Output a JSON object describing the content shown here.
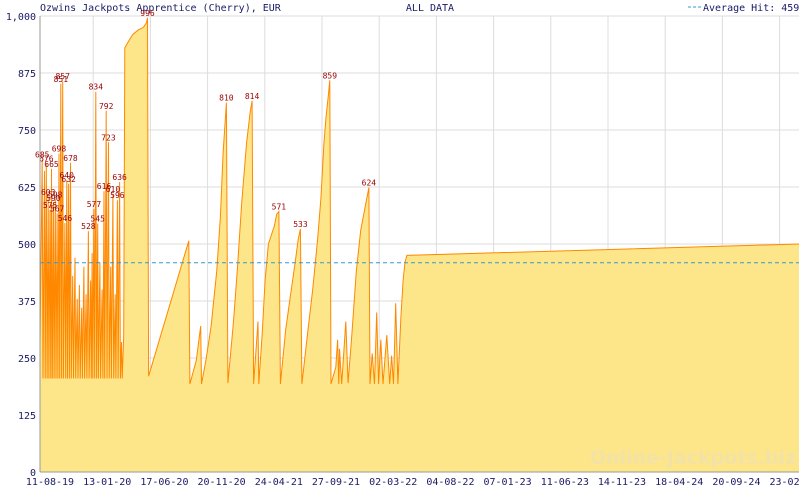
{
  "header": {
    "title": "Ozwins Jackpots Apprentice (Cherry), EUR",
    "range_label": "ALL DATA",
    "legend_label": "Average Hit: 459"
  },
  "watermark": "Online-Jackpots.biz",
  "colors": {
    "area_fill": "#fde68a",
    "line": "#ff8800",
    "average_line": "#3399cc",
    "grid": "#dddddd",
    "peak_label": "#990000",
    "text": "#1a1a66"
  },
  "chart_data": {
    "type": "area",
    "title": "Ozwins Jackpots Apprentice (Cherry), EUR",
    "subtitle": "ALL DATA",
    "currency": "EUR",
    "ylim": [
      0,
      1000
    ],
    "y_ticks": [
      0,
      125,
      250,
      375,
      500,
      625,
      750,
      875,
      1000
    ],
    "y_tick_labels": [
      "0",
      "125",
      "250",
      "375",
      "500",
      "625",
      "750",
      "875",
      "1,000"
    ],
    "x_tick_labels": [
      "11-08-19",
      "13-01-20",
      "17-06-20",
      "20-11-20",
      "24-04-21",
      "27-09-21",
      "02-03-22",
      "04-08-22",
      "07-01-23",
      "11-06-23",
      "14-11-23",
      "18-04-24",
      "20-09-24",
      "23-02-25"
    ],
    "x_index_range": [
      0,
      2040
    ],
    "average_hit": 459,
    "grid": true,
    "series": [
      {
        "points": [
          [
            0,
            280
          ],
          [
            6,
            685
          ],
          [
            8,
            205
          ],
          [
            12,
            660
          ],
          [
            14,
            205
          ],
          [
            17,
            676
          ],
          [
            19,
            205
          ],
          [
            22,
            603
          ],
          [
            24,
            205
          ],
          [
            27,
            575
          ],
          [
            29,
            205
          ],
          [
            31,
            665
          ],
          [
            33,
            205
          ],
          [
            36,
            590
          ],
          [
            38,
            205
          ],
          [
            41,
            598
          ],
          [
            43,
            205
          ],
          [
            46,
            567
          ],
          [
            48,
            205
          ],
          [
            51,
            698
          ],
          [
            53,
            205
          ],
          [
            56,
            851
          ],
          [
            58,
            205
          ],
          [
            61,
            857
          ],
          [
            63,
            205
          ],
          [
            67,
            546
          ],
          [
            69,
            205
          ],
          [
            72,
            640
          ],
          [
            74,
            205
          ],
          [
            77,
            632
          ],
          [
            79,
            205
          ],
          [
            82,
            678
          ],
          [
            84,
            205
          ],
          [
            88,
            430
          ],
          [
            90,
            205
          ],
          [
            94,
            470
          ],
          [
            96,
            205
          ],
          [
            100,
            380
          ],
          [
            102,
            205
          ],
          [
            106,
            410
          ],
          [
            108,
            205
          ],
          [
            112,
            360
          ],
          [
            114,
            205
          ],
          [
            118,
            450
          ],
          [
            120,
            205
          ],
          [
            124,
            390
          ],
          [
            126,
            205
          ],
          [
            130,
            528
          ],
          [
            132,
            205
          ],
          [
            136,
            420
          ],
          [
            138,
            205
          ],
          [
            140,
            480
          ],
          [
            142,
            205
          ],
          [
            145,
            577
          ],
          [
            147,
            205
          ],
          [
            150,
            834
          ],
          [
            152,
            205
          ],
          [
            155,
            545
          ],
          [
            157,
            205
          ],
          [
            161,
            460
          ],
          [
            163,
            205
          ],
          [
            167,
            400
          ],
          [
            169,
            205
          ],
          [
            172,
            616
          ],
          [
            174,
            205
          ],
          [
            178,
            792
          ],
          [
            180,
            205
          ],
          [
            184,
            723
          ],
          [
            186,
            205
          ],
          [
            190,
            450
          ],
          [
            192,
            205
          ],
          [
            196,
            610
          ],
          [
            198,
            205
          ],
          [
            202,
            390
          ],
          [
            204,
            205
          ],
          [
            208,
            596
          ],
          [
            210,
            205
          ],
          [
            214,
            636
          ],
          [
            216,
            205
          ],
          [
            219,
            285
          ],
          [
            221,
            205
          ],
          [
            225,
            300
          ],
          [
            228,
            930
          ],
          [
            238,
            945
          ],
          [
            250,
            960
          ],
          [
            265,
            970
          ],
          [
            278,
            975
          ],
          [
            286,
            985
          ],
          [
            289,
            996
          ],
          [
            292,
            210
          ],
          [
            400,
            507
          ],
          [
            403,
            193
          ],
          [
            420,
            245
          ],
          [
            432,
            320
          ],
          [
            434,
            193
          ],
          [
            447,
            250
          ],
          [
            460,
            320
          ],
          [
            475,
            440
          ],
          [
            485,
            560
          ],
          [
            492,
            700
          ],
          [
            501,
            810
          ],
          [
            505,
            195
          ],
          [
            520,
            330
          ],
          [
            530,
            440
          ],
          [
            542,
            590
          ],
          [
            555,
            720
          ],
          [
            565,
            790
          ],
          [
            570,
            814
          ],
          [
            574,
            193
          ],
          [
            586,
            330
          ],
          [
            588,
            193
          ],
          [
            597,
            300
          ],
          [
            605,
            420
          ],
          [
            614,
            500
          ],
          [
            622,
            520
          ],
          [
            630,
            540
          ],
          [
            636,
            565
          ],
          [
            642,
            571
          ],
          [
            646,
            193
          ],
          [
            660,
            310
          ],
          [
            672,
            380
          ],
          [
            686,
            460
          ],
          [
            694,
            510
          ],
          [
            700,
            533
          ],
          [
            704,
            193
          ],
          [
            720,
            310
          ],
          [
            733,
            400
          ],
          [
            746,
            510
          ],
          [
            755,
            600
          ],
          [
            763,
            720
          ],
          [
            769,
            780
          ],
          [
            775,
            825
          ],
          [
            779,
            859
          ],
          [
            782,
            193
          ],
          [
            795,
            230
          ],
          [
            800,
            290
          ],
          [
            803,
            193
          ],
          [
            805,
            270
          ],
          [
            811,
            193
          ],
          [
            822,
            330
          ],
          [
            828,
            195
          ],
          [
            838,
            300
          ],
          [
            850,
            440
          ],
          [
            862,
            530
          ],
          [
            876,
            590
          ],
          [
            884,
            624
          ],
          [
            887,
            193
          ],
          [
            893,
            260
          ],
          [
            899,
            193
          ],
          [
            905,
            350
          ],
          [
            910,
            193
          ],
          [
            916,
            290
          ],
          [
            922,
            193
          ],
          [
            932,
            300
          ],
          [
            940,
            193
          ],
          [
            945,
            255
          ],
          [
            950,
            193
          ],
          [
            956,
            370
          ],
          [
            962,
            193
          ],
          [
            970,
            340
          ],
          [
            976,
            420
          ],
          [
            981,
            460
          ],
          [
            986,
            475
          ],
          [
            2040,
            500
          ]
        ]
      }
    ],
    "peak_labels": [
      {
        "x": 6,
        "y": 685,
        "text": "685"
      },
      {
        "x": 17,
        "y": 676,
        "text": "676"
      },
      {
        "x": 22,
        "y": 603,
        "text": "603"
      },
      {
        "x": 27,
        "y": 575,
        "text": "575"
      },
      {
        "x": 31,
        "y": 665,
        "text": "665"
      },
      {
        "x": 36,
        "y": 590,
        "text": "590"
      },
      {
        "x": 41,
        "y": 598,
        "text": "598"
      },
      {
        "x": 46,
        "y": 567,
        "text": "567"
      },
      {
        "x": 51,
        "y": 698,
        "text": "698"
      },
      {
        "x": 56,
        "y": 851,
        "text": "851"
      },
      {
        "x": 61,
        "y": 857,
        "text": "857"
      },
      {
        "x": 67,
        "y": 546,
        "text": "546"
      },
      {
        "x": 72,
        "y": 640,
        "text": "640"
      },
      {
        "x": 77,
        "y": 632,
        "text": "632"
      },
      {
        "x": 82,
        "y": 678,
        "text": "678"
      },
      {
        "x": 130,
        "y": 528,
        "text": "528"
      },
      {
        "x": 145,
        "y": 577,
        "text": "577"
      },
      {
        "x": 150,
        "y": 834,
        "text": "834"
      },
      {
        "x": 155,
        "y": 545,
        "text": "545"
      },
      {
        "x": 172,
        "y": 616,
        "text": "616"
      },
      {
        "x": 178,
        "y": 792,
        "text": "792"
      },
      {
        "x": 184,
        "y": 723,
        "text": "723"
      },
      {
        "x": 196,
        "y": 610,
        "text": "610"
      },
      {
        "x": 208,
        "y": 596,
        "text": "596"
      },
      {
        "x": 214,
        "y": 636,
        "text": "636"
      },
      {
        "x": 289,
        "y": 996,
        "text": "996"
      },
      {
        "x": 501,
        "y": 810,
        "text": "810"
      },
      {
        "x": 570,
        "y": 814,
        "text": "814"
      },
      {
        "x": 642,
        "y": 571,
        "text": "571"
      },
      {
        "x": 700,
        "y": 533,
        "text": "533"
      },
      {
        "x": 779,
        "y": 859,
        "text": "859"
      },
      {
        "x": 884,
        "y": 624,
        "text": "624"
      }
    ]
  }
}
